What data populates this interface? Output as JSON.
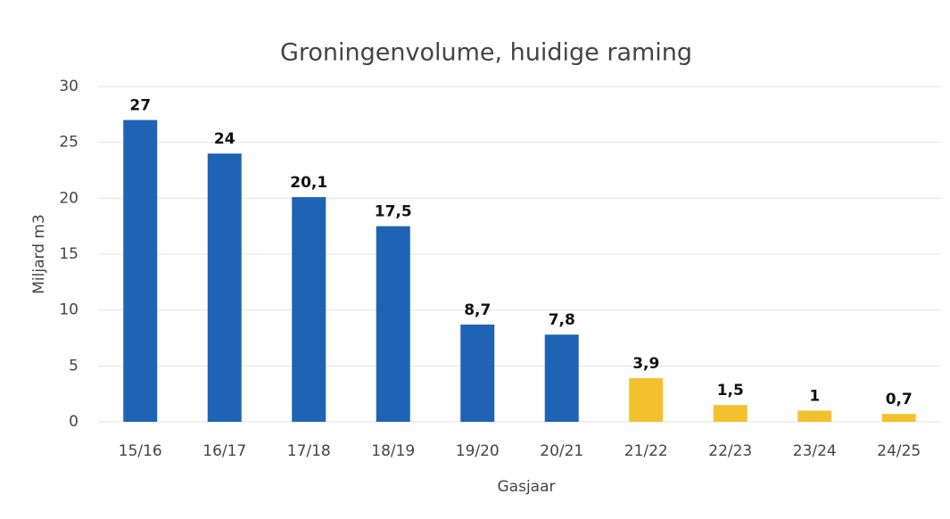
{
  "chart_data": {
    "type": "bar",
    "title": "Groningenvolume, huidige raming",
    "x_label": "Gasjaar",
    "y_label": "Miljard m3",
    "categories": [
      "15/16",
      "16/17",
      "17/18",
      "18/19",
      "19/20",
      "20/21",
      "21/22",
      "22/23",
      "23/24",
      "24/25"
    ],
    "values": [
      27,
      24,
      20.1,
      17.5,
      8.7,
      7.8,
      3.9,
      1.5,
      1,
      0.7
    ],
    "value_labels": [
      "27",
      "24",
      "20,1",
      "17,5",
      "8,7",
      "7,8",
      "3,9",
      "1,5",
      "1",
      "0,7"
    ],
    "colors": [
      "#1f63b5",
      "#1f63b5",
      "#1f63b5",
      "#1f63b5",
      "#1f63b5",
      "#1f63b5",
      "#f4c12e",
      "#f4c12e",
      "#f4c12e",
      "#f4c12e"
    ],
    "ylim": [
      0,
      30
    ],
    "yticks": [
      0,
      5,
      10,
      15,
      20,
      25,
      30
    ],
    "grid": true
  }
}
